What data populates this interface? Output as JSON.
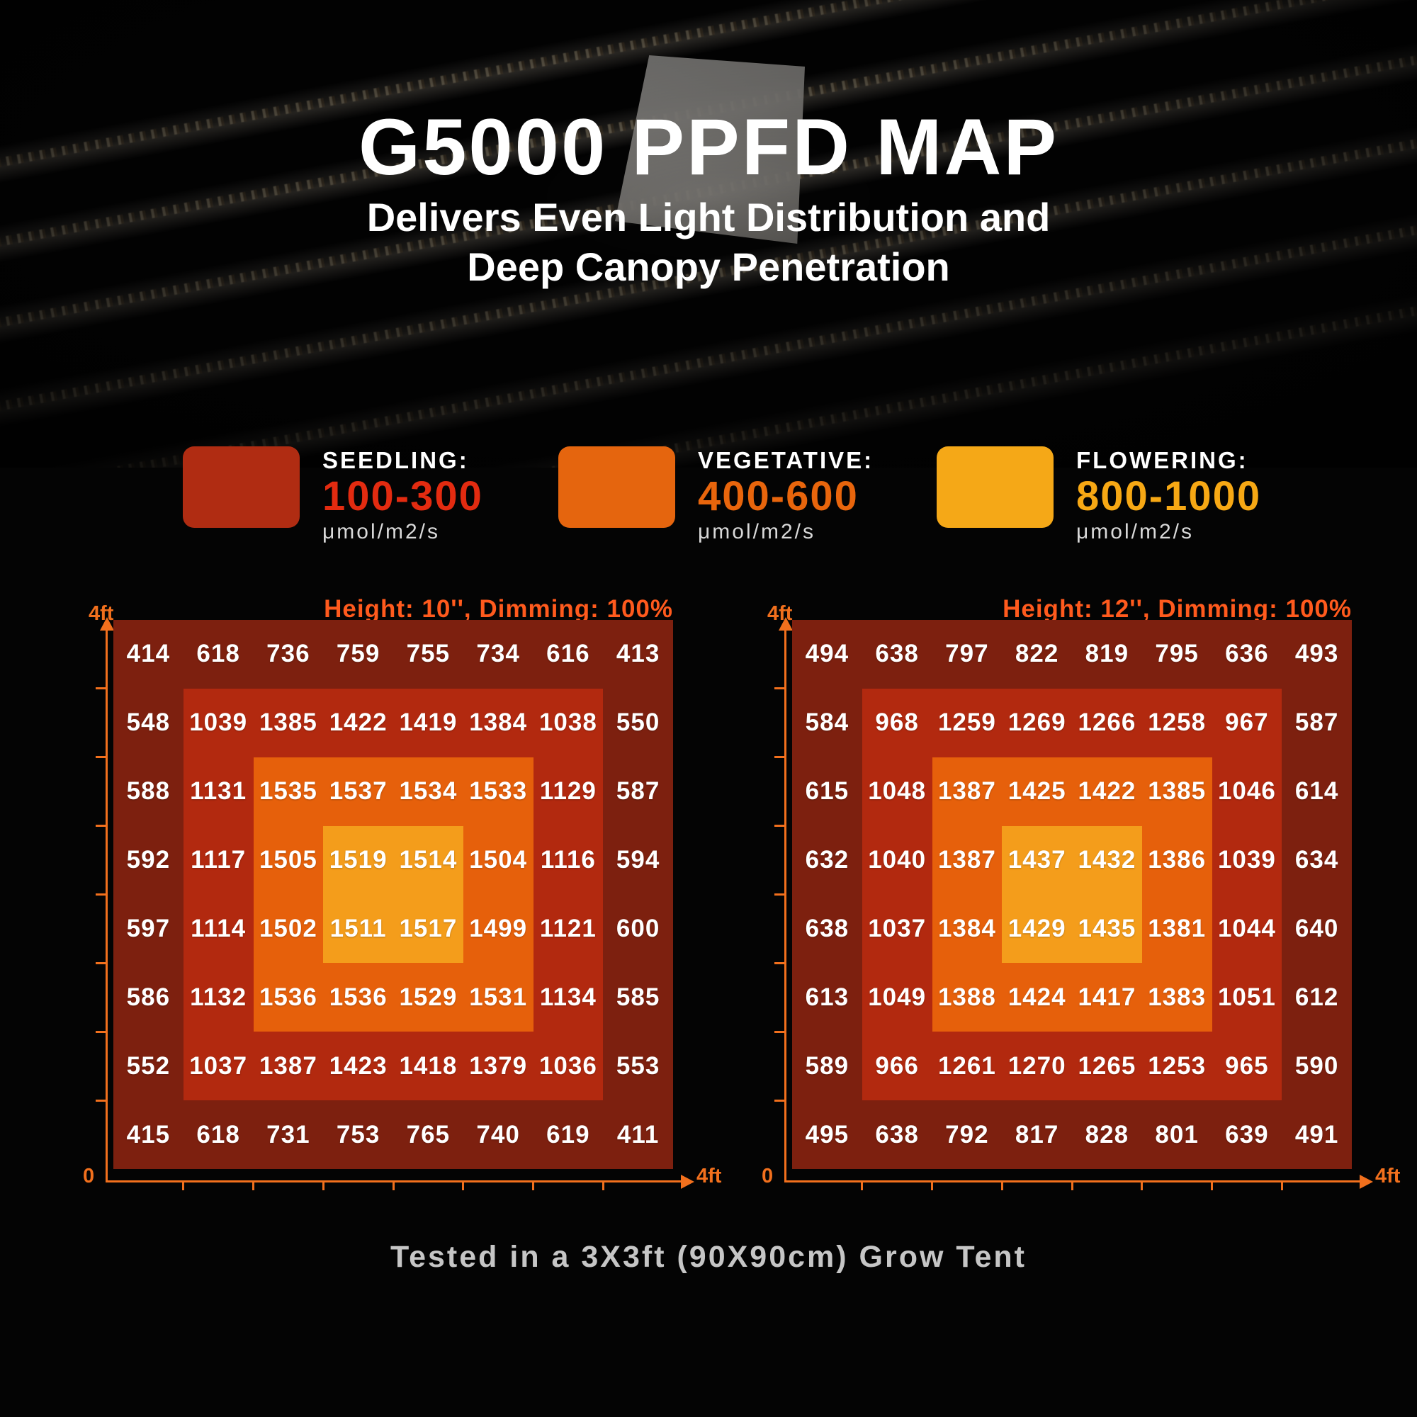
{
  "hero": {
    "title": "G5000 PPFD MAP",
    "subtitle_line1": "Delivers Even Light Distribution and",
    "subtitle_line2": "Deep Canopy Penetration"
  },
  "legend": [
    {
      "name": "seedling",
      "label": "SEEDLING:",
      "range": "100-300",
      "unit": "μmol/m2/s",
      "swatch_color": "#B02C12",
      "range_color": "#E32B10"
    },
    {
      "name": "vegetative",
      "label": "VEGETATIVE:",
      "range": "400-600",
      "unit": "μmol/m2/s",
      "swatch_color": "#E5650E",
      "range_color": "#E8650C"
    },
    {
      "name": "flowering",
      "label": "FLOWERING:",
      "range": "800-1000",
      "unit": "μmol/m2/s",
      "swatch_color": "#F5A817",
      "range_color": "#F7A814"
    }
  ],
  "zone_colors": [
    "#7D200F",
    "#B2290F",
    "#E6600B",
    "#F49D1B"
  ],
  "footer": {
    "caption": "Tested in a 3X3ft (90X90cm) Grow Tent"
  },
  "chart_data": [
    {
      "type": "heatmap",
      "title": "Height: 10'', Dimming: 100%",
      "x_axis": {
        "start_label": "0",
        "end_label": "4ft"
      },
      "y_axis": {
        "end_label": "4ft"
      },
      "rows": 8,
      "cols": 8,
      "values": [
        [
          414,
          618,
          736,
          759,
          755,
          734,
          616,
          413
        ],
        [
          548,
          1039,
          1385,
          1422,
          1419,
          1384,
          1038,
          550
        ],
        [
          588,
          1131,
          1535,
          1537,
          1534,
          1533,
          1129,
          587
        ],
        [
          592,
          1117,
          1505,
          1519,
          1514,
          1504,
          1116,
          594
        ],
        [
          597,
          1114,
          1502,
          1511,
          1517,
          1499,
          1121,
          600
        ],
        [
          586,
          1132,
          1536,
          1536,
          1529,
          1531,
          1134,
          585
        ],
        [
          552,
          1037,
          1387,
          1423,
          1418,
          1379,
          1036,
          553
        ],
        [
          415,
          618,
          731,
          753,
          765,
          740,
          619,
          411
        ]
      ]
    },
    {
      "type": "heatmap",
      "title": "Height: 12'', Dimming: 100%",
      "x_axis": {
        "start_label": "0",
        "end_label": "4ft"
      },
      "y_axis": {
        "end_label": "4ft"
      },
      "rows": 8,
      "cols": 8,
      "values": [
        [
          494,
          638,
          797,
          822,
          819,
          795,
          636,
          493
        ],
        [
          584,
          968,
          1259,
          1269,
          1266,
          1258,
          967,
          587
        ],
        [
          615,
          1048,
          1387,
          1425,
          1422,
          1385,
          1046,
          614
        ],
        [
          632,
          1040,
          1387,
          1437,
          1432,
          1386,
          1039,
          634
        ],
        [
          638,
          1037,
          1384,
          1429,
          1435,
          1381,
          1044,
          640
        ],
        [
          613,
          1049,
          1388,
          1424,
          1417,
          1383,
          1051,
          612
        ],
        [
          589,
          966,
          1261,
          1270,
          1265,
          1253,
          965,
          590
        ],
        [
          495,
          638,
          792,
          817,
          828,
          801,
          639,
          491
        ]
      ]
    }
  ]
}
